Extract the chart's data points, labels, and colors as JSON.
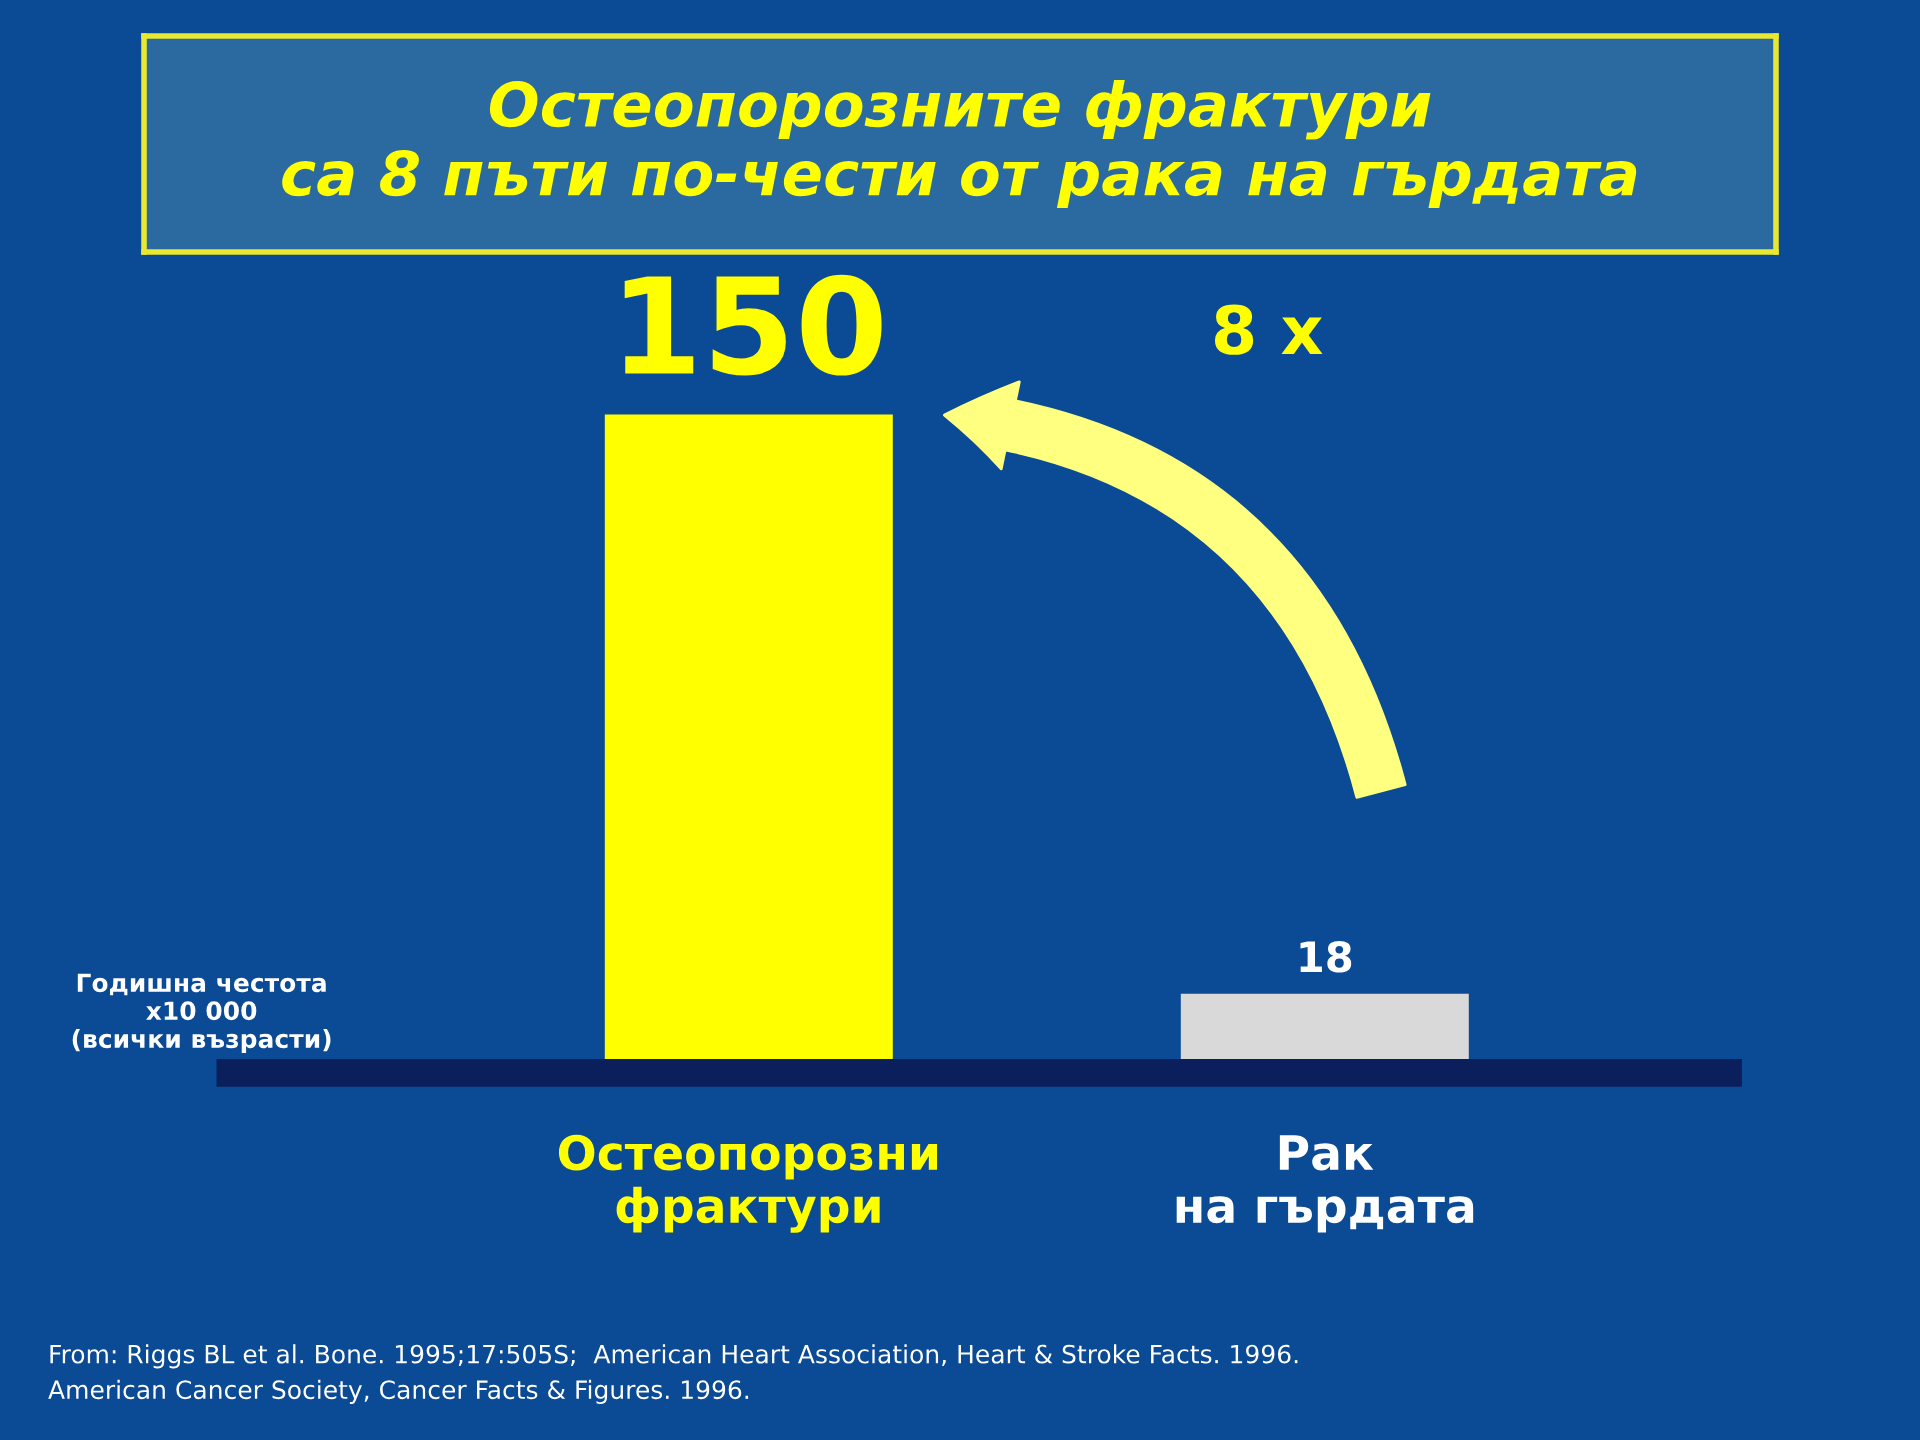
{
  "chart_data": {
    "type": "bar",
    "title": "Остеопорозните фрактури\nса 8 пъти по-чести от рака на гърдата",
    "ylabel": "Годишна честота\nx10 000\n(всички възрасти)",
    "categories": [
      "Остеопорозни\nфрактури",
      "Рак\nна гърдата"
    ],
    "values": [
      150,
      18
    ],
    "colors": [
      "#ffff00",
      "#d9d9d9"
    ],
    "data_labels": true,
    "annotations": [
      "8 x",
      "From: Riggs BL et al. Bone. 1995;17:505S;  American Heart Association, Heart & Stroke Facts. 1996.\nAmerican Cancer Society, Cancer Facts & Figures. 1996."
    ]
  }
}
